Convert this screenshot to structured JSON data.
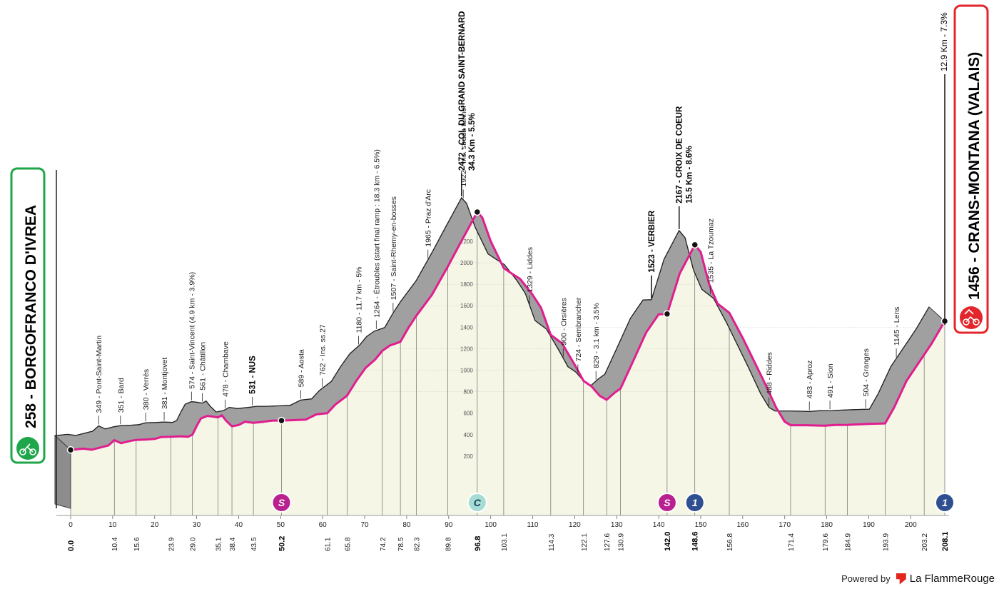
{
  "brand": {
    "powered_by": "Powered by",
    "name": "La FlammeRouge",
    "start_icon": "cyclist-icon",
    "finish_icon": "mountain-cyclist-icon"
  },
  "start": {
    "label": "258 - BORGOFRANCO D'IVREA",
    "color": "#1fa64a"
  },
  "finish": {
    "label": "1456 - CRANS-MONTANA (VALAIS)",
    "climb": "12.9 Km - 7.3%",
    "color": "#e3262b"
  },
  "colors": {
    "route": "#e01e8f",
    "wall": "#a0a0a0",
    "fill": "#f5f6e6",
    "sprint": "#b8218f",
    "cat": "#a6dcd3",
    "km": "#2f4f91"
  },
  "chart_data": {
    "type": "area",
    "xlabel": "",
    "ylabel": "",
    "xlim": [
      0,
      208.1
    ],
    "ylim": [
      0,
      2600
    ],
    "y_ticks": [
      "200",
      "400",
      "600",
      "800",
      "1000",
      "1200",
      "1400",
      "1600",
      "1800",
      "2000",
      "2200",
      "2400"
    ],
    "x_ticks": [
      "0",
      "10",
      "20",
      "30",
      "40",
      "50",
      "60",
      "70",
      "80",
      "90",
      "100",
      "110",
      "120",
      "130",
      "140",
      "150",
      "160",
      "170",
      "180",
      "190",
      "200"
    ],
    "profile": [
      [
        0,
        258
      ],
      [
        3,
        270
      ],
      [
        5,
        260
      ],
      [
        7,
        280
      ],
      [
        9,
        300
      ],
      [
        10.4,
        349
      ],
      [
        12,
        320
      ],
      [
        14,
        340
      ],
      [
        15.6,
        351
      ],
      [
        18,
        355
      ],
      [
        20,
        360
      ],
      [
        21.6,
        378
      ],
      [
        23.9,
        380
      ],
      [
        26,
        385
      ],
      [
        28,
        381
      ],
      [
        29.0,
        400
      ],
      [
        30,
        480
      ],
      [
        31,
        550
      ],
      [
        32.5,
        574
      ],
      [
        33.5,
        570
      ],
      [
        35.1,
        561
      ],
      [
        36,
        580
      ],
      [
        37,
        530
      ],
      [
        38.4,
        478
      ],
      [
        40,
        490
      ],
      [
        41.5,
        520
      ],
      [
        43.5,
        510
      ],
      [
        46,
        520
      ],
      [
        48,
        531
      ],
      [
        50.2,
        531
      ],
      [
        53,
        535
      ],
      [
        56,
        540
      ],
      [
        58.5,
        589
      ],
      [
        61.1,
        600
      ],
      [
        63,
        680
      ],
      [
        65.8,
        762
      ],
      [
        68,
        900
      ],
      [
        70.2,
        1020
      ],
      [
        72.5,
        1100
      ],
      [
        74.2,
        1180
      ],
      [
        76,
        1230
      ],
      [
        78.5,
        1264
      ],
      [
        80.5,
        1400
      ],
      [
        82.3,
        1507
      ],
      [
        86,
        1700
      ],
      [
        89.8,
        1965
      ],
      [
        93,
        2200
      ],
      [
        96.8,
        2472
      ],
      [
        98,
        2420
      ],
      [
        100,
        2200
      ],
      [
        103.1,
        1950
      ],
      [
        105,
        1900
      ],
      [
        107,
        1850
      ],
      [
        110,
        1700
      ],
      [
        112,
        1580
      ],
      [
        114.3,
        1329
      ],
      [
        117,
        1250
      ],
      [
        120,
        1050
      ],
      [
        122.1,
        900
      ],
      [
        124,
        850
      ],
      [
        126,
        760
      ],
      [
        127.6,
        724
      ],
      [
        129.5,
        790
      ],
      [
        130.9,
        829
      ],
      [
        133.5,
        1050
      ],
      [
        137,
        1350
      ],
      [
        140,
        1520
      ],
      [
        142.0,
        1523
      ],
      [
        145,
        1900
      ],
      [
        148.6,
        2167
      ],
      [
        150,
        2100
      ],
      [
        152,
        1800
      ],
      [
        154,
        1620
      ],
      [
        156.8,
        1535
      ],
      [
        160,
        1300
      ],
      [
        165,
        900
      ],
      [
        168,
        650
      ],
      [
        170,
        520
      ],
      [
        171.4,
        488
      ],
      [
        175,
        488
      ],
      [
        179.6,
        483
      ],
      [
        182,
        490
      ],
      [
        184.9,
        491
      ],
      [
        187,
        495
      ],
      [
        190,
        500
      ],
      [
        193.9,
        504
      ],
      [
        196,
        650
      ],
      [
        199,
        900
      ],
      [
        203.2,
        1145
      ],
      [
        205,
        1250
      ],
      [
        208.1,
        1456
      ]
    ],
    "points_of_interest": [
      {
        "km": 0.0,
        "label": "",
        "bold": false
      },
      {
        "km": 10.4,
        "label": "349 - Pont-Saint-Martin",
        "bold": false
      },
      {
        "km": 15.6,
        "label": "351 - Bard",
        "bold": false
      },
      {
        "km": 21.6,
        "label": "380 - Verrès",
        "bold": false
      },
      {
        "km": 26.0,
        "label": "381 - Montjovet",
        "bold": false
      },
      {
        "km": 32.5,
        "label": "574 - Saint-Vincent (4.9 km - 3.9%)",
        "bold": false
      },
      {
        "km": 35.1,
        "label": "561 - Châtillon",
        "bold": false
      },
      {
        "km": 40.5,
        "label": "478 - Chambave",
        "bold": false
      },
      {
        "km": 47.0,
        "label": "531 - NUS",
        "bold": true
      },
      {
        "km": 58.5,
        "label": "589 - Aosta",
        "bold": false
      },
      {
        "km": 63.6,
        "label": "762 - Ins. ss.27",
        "bold": false
      },
      {
        "km": 72.3,
        "label": "1180 - 11.7 km - 5%",
        "bold": false
      },
      {
        "km": 76.5,
        "label": "1264 - Étroubles (start final ramp : 18.3 km - 6.5%)",
        "bold": false
      },
      {
        "km": 80.5,
        "label": "1507 - Saint-Rhemy-en-bosses",
        "bold": false
      },
      {
        "km": 88.8,
        "label": "1965 - Praz d'Arc",
        "bold": false
      },
      {
        "km": 97.2,
        "label": "1922 - Ins. strada tunnel",
        "bold": false
      },
      {
        "km": 113.0,
        "label": "1329 - Liddes",
        "bold": false
      },
      {
        "km": 121.0,
        "label": "900 - Orsières",
        "bold": false
      },
      {
        "km": 124.5,
        "label": "724 - Sembrancher",
        "bold": false
      },
      {
        "km": 128.8,
        "label": "829 - 3.1 km - 3.5%",
        "bold": false
      },
      {
        "km": 156.0,
        "label": "1535 - La Tzoumaz",
        "bold": false
      },
      {
        "km": 170.0,
        "label": "488 - Riddes",
        "bold": false
      },
      {
        "km": 179.6,
        "label": "483 - Aproz",
        "bold": false
      },
      {
        "km": 184.5,
        "label": "491 - Sion",
        "bold": false
      },
      {
        "km": 193.0,
        "label": "504 - Granges",
        "bold": false
      },
      {
        "km": 200.3,
        "label": "1145 - Lens",
        "bold": false
      }
    ],
    "climbs": [
      {
        "km": 96.8,
        "title": "2472 - COL DU GRAND SAINT-BERNARD",
        "sub": "34.3 Km - 5.5%"
      },
      {
        "km": 148.6,
        "title": "2167 - CROIX DE COEUR",
        "sub": "15.5 Km - 8.6%"
      },
      {
        "km": 142.0,
        "title": "1523 - VERBIER",
        "sub": ""
      }
    ],
    "km_labels": [
      {
        "km": 0.0,
        "label": "0.0",
        "bold": true
      },
      {
        "km": 10.4,
        "label": "10.4",
        "bold": false
      },
      {
        "km": 15.6,
        "label": "15.6",
        "bold": false
      },
      {
        "km": 23.9,
        "label": "23.9",
        "bold": false
      },
      {
        "km": 29.0,
        "label": "29.0",
        "bold": false
      },
      {
        "km": 35.1,
        "label": "35.1",
        "bold": false
      },
      {
        "km": 38.4,
        "label": "38.4",
        "bold": false
      },
      {
        "km": 43.5,
        "label": "43.5",
        "bold": false
      },
      {
        "km": 50.2,
        "label": "50.2",
        "bold": true
      },
      {
        "km": 61.1,
        "label": "61.1",
        "bold": false
      },
      {
        "km": 65.8,
        "label": "65.8",
        "bold": false
      },
      {
        "km": 74.2,
        "label": "74.2",
        "bold": false
      },
      {
        "km": 78.5,
        "label": "78.5",
        "bold": false
      },
      {
        "km": 82.3,
        "label": "82.3",
        "bold": false
      },
      {
        "km": 89.8,
        "label": "89.8",
        "bold": false
      },
      {
        "km": 96.8,
        "label": "96.8",
        "bold": true
      },
      {
        "km": 103.1,
        "label": "103.1",
        "bold": false
      },
      {
        "km": 114.3,
        "label": "114.3",
        "bold": false
      },
      {
        "km": 122.1,
        "label": "122.1",
        "bold": false
      },
      {
        "km": 127.6,
        "label": "127.6",
        "bold": false
      },
      {
        "km": 130.9,
        "label": "130.9",
        "bold": false
      },
      {
        "km": 142.0,
        "label": "142.0",
        "bold": true
      },
      {
        "km": 148.6,
        "label": "148.6",
        "bold": true
      },
      {
        "km": 156.8,
        "label": "156.8",
        "bold": false
      },
      {
        "km": 171.4,
        "label": "171.4",
        "bold": false
      },
      {
        "km": 179.6,
        "label": "179.6",
        "bold": false
      },
      {
        "km": 184.9,
        "label": "184.9",
        "bold": false
      },
      {
        "km": 193.9,
        "label": "193.9",
        "bold": false
      },
      {
        "km": 203.2,
        "label": "203.2",
        "bold": false
      },
      {
        "km": 208.1,
        "label": "208.1",
        "bold": true
      }
    ],
    "markers": [
      {
        "km": 50.2,
        "type": "sprint",
        "text": "S"
      },
      {
        "km": 96.8,
        "type": "cat",
        "text": "C"
      },
      {
        "km": 142.0,
        "type": "sprint",
        "text": "S"
      },
      {
        "km": 148.6,
        "type": "km",
        "text": "1"
      },
      {
        "km": 208.1,
        "type": "km",
        "text": "1"
      }
    ],
    "dots": [
      0.0,
      50.2,
      96.8,
      142.0,
      148.6,
      208.1
    ]
  }
}
